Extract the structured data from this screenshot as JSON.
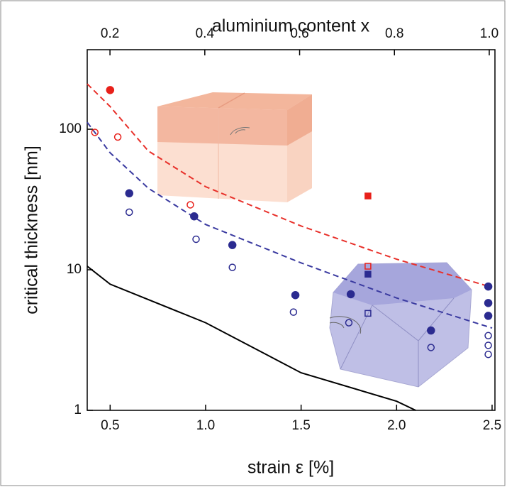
{
  "chart_data": {
    "type": "scatter",
    "x_label": "strain ε [%]",
    "y_label": "critical thickness [nm]",
    "x2_label": "aluminium content x",
    "xlim": [
      0.38,
      2.515
    ],
    "xticks": [
      0.5,
      {
        "value": 1,
        "label": "1.0"
      },
      1.5,
      {
        "value": 2,
        "label": "2.0"
      },
      2.5
    ],
    "x2lim": [
      0.152,
      1.012
    ],
    "x2ticks": [
      0.2,
      0.4,
      0.6,
      0.8,
      {
        "value": 1,
        "label": "1.0"
      }
    ],
    "ylim": [
      1,
      368
    ],
    "yticks": [
      1,
      10,
      100
    ],
    "y_log": true,
    "series": [
      {
        "mode": "line",
        "dash": true,
        "color": "#e8302a",
        "x": [
          0.38,
          0.5,
          0.7,
          1.0,
          1.5,
          2.0,
          2.5
        ],
        "values": [
          210,
          145,
          70,
          39,
          20.5,
          11.9,
          7.5
        ]
      },
      {
        "mode": "line",
        "dash": true,
        "color": "#3a3aa0",
        "x": [
          0.38,
          0.5,
          0.7,
          1.0,
          1.5,
          2.0,
          2.5
        ],
        "values": [
          112,
          68,
          38,
          21,
          11.2,
          6.3,
          3.85
        ]
      },
      {
        "mode": "line",
        "dash": false,
        "color": "#000000",
        "x": [
          0.38,
          0.5,
          1.0,
          1.5,
          2.0,
          2.1
        ],
        "values": [
          10.6,
          7.9,
          4.2,
          1.85,
          1.16,
          1.0
        ]
      },
      {
        "mode": "markers",
        "marker": "circle",
        "filled": true,
        "color": "#e8201a",
        "x": [
          0.5
        ],
        "values": [
          190
        ]
      },
      {
        "mode": "markers",
        "marker": "circle",
        "filled": false,
        "color": "#e8201a",
        "x": [
          0.42,
          0.54,
          0.92
        ],
        "values": [
          95,
          88,
          29
        ]
      },
      {
        "mode": "markers",
        "marker": "circle",
        "filled": true,
        "color": "#2b2b90",
        "x": [
          0.6,
          0.94,
          1.14,
          1.47,
          1.76,
          2.18,
          2.48,
          2.48,
          2.48
        ],
        "values": [
          35,
          24,
          15,
          6.6,
          6.7,
          3.7,
          7.6,
          5.8,
          4.7
        ]
      },
      {
        "mode": "markers",
        "marker": "circle",
        "filled": false,
        "color": "#2b2b90",
        "x": [
          0.6,
          0.95,
          1.14,
          1.46,
          1.75,
          2.18,
          2.48,
          2.48,
          2.48
        ],
        "values": [
          25.7,
          16.5,
          10.4,
          5.0,
          4.2,
          2.8,
          3.4,
          2.9,
          2.5
        ]
      },
      {
        "mode": "markers",
        "marker": "square",
        "filled": true,
        "color": "#e8201a",
        "x": [
          1.85
        ],
        "values": [
          33.5
        ]
      },
      {
        "mode": "markers",
        "marker": "square",
        "filled": false,
        "color": "#e8201a",
        "x": [
          1.85
        ],
        "values": [
          10.6
        ]
      },
      {
        "mode": "markers",
        "marker": "square",
        "filled": true,
        "color": "#2b2b90",
        "x": [
          1.85
        ],
        "values": [
          9.3
        ]
      },
      {
        "mode": "markers",
        "marker": "square",
        "filled": false,
        "color": "#2b2b90",
        "x": [
          1.85
        ],
        "values": [
          4.9
        ]
      }
    ]
  }
}
